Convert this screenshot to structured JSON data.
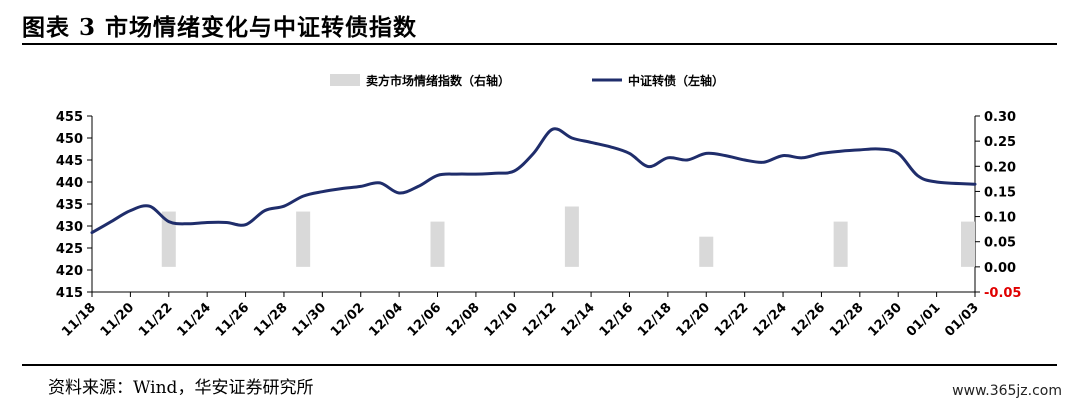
{
  "figure": {
    "title": "图表 3 市场情绪变化与中证转债指数",
    "source": "资料来源：Wind，华安证券研究所",
    "watermark": "www.365jz.com"
  },
  "chart_data": {
    "type": "bar+line",
    "title": "",
    "legend": [
      {
        "label": "卖方市场情绪指数（右轴）",
        "color": "#d9d9d9",
        "kind": "bar"
      },
      {
        "label": "中证转债（左轴）",
        "color": "#1f2d6b",
        "kind": "line"
      }
    ],
    "legend_position": "top",
    "x_ticks": [
      "11/18",
      "11/20",
      "11/22",
      "11/24",
      "11/26",
      "11/28",
      "11/30",
      "12/02",
      "12/04",
      "12/06",
      "12/08",
      "12/10",
      "12/12",
      "12/14",
      "12/16",
      "12/18",
      "12/20",
      "12/22",
      "12/24",
      "12/26",
      "12/28",
      "12/30",
      "01/01",
      "01/03"
    ],
    "y_left": {
      "min": 415,
      "max": 455,
      "step": 5,
      "ticks": [
        "455",
        "450",
        "445",
        "440",
        "435",
        "430",
        "425",
        "420",
        "415"
      ]
    },
    "y_right": {
      "min": -0.05,
      "max": 0.3,
      "step": 0.05,
      "ticks": [
        "0.30",
        "0.25",
        "0.20",
        "0.15",
        "0.10",
        "0.05",
        "0.00",
        "-0.05"
      ],
      "negative_color": "#e00000"
    },
    "series": [
      {
        "name": "中证转债（左轴）",
        "axis": "left",
        "color": "#1f2d6b",
        "points": [
          [
            "11/18",
            428.5
          ],
          [
            "11/19",
            431.0
          ],
          [
            "11/20",
            433.5
          ],
          [
            "11/21",
            434.5
          ],
          [
            "11/22",
            431.0
          ],
          [
            "11/23",
            430.5
          ],
          [
            "11/24",
            430.8
          ],
          [
            "11/25",
            430.8
          ],
          [
            "11/26",
            430.3
          ],
          [
            "11/27",
            433.5
          ],
          [
            "11/28",
            434.5
          ],
          [
            "11/29",
            436.8
          ],
          [
            "11/30",
            437.8
          ],
          [
            "12/01",
            438.5
          ],
          [
            "12/02",
            439.0
          ],
          [
            "12/03",
            439.8
          ],
          [
            "12/04",
            437.5
          ],
          [
            "12/05",
            439.0
          ],
          [
            "12/06",
            441.5
          ],
          [
            "12/07",
            441.8
          ],
          [
            "12/08",
            441.8
          ],
          [
            "12/09",
            442.0
          ],
          [
            "12/10",
            442.5
          ],
          [
            "12/11",
            446.5
          ],
          [
            "12/12",
            452.0
          ],
          [
            "12/13",
            450.0
          ],
          [
            "12/14",
            449.0
          ],
          [
            "12/15",
            448.0
          ],
          [
            "12/16",
            446.5
          ],
          [
            "12/17",
            443.5
          ],
          [
            "12/18",
            445.5
          ],
          [
            "12/19",
            445.0
          ],
          [
            "12/20",
            446.5
          ],
          [
            "12/21",
            446.0
          ],
          [
            "12/22",
            445.0
          ],
          [
            "12/23",
            444.5
          ],
          [
            "12/24",
            446.0
          ],
          [
            "12/25",
            445.5
          ],
          [
            "12/26",
            446.5
          ],
          [
            "12/27",
            447.0
          ],
          [
            "12/28",
            447.3
          ],
          [
            "12/29",
            447.5
          ],
          [
            "12/30",
            446.5
          ],
          [
            "12/31",
            441.5
          ],
          [
            "01/01",
            440.0
          ],
          [
            "01/03",
            439.5
          ]
        ]
      },
      {
        "name": "卖方市场情绪指数（右轴）",
        "axis": "right",
        "color": "#d9d9d9",
        "points": [
          [
            "11/22",
            0.11
          ],
          [
            "11/29",
            0.11
          ],
          [
            "12/06",
            0.09
          ],
          [
            "12/13",
            0.12
          ],
          [
            "12/20",
            0.06
          ],
          [
            "12/27",
            0.09
          ],
          [
            "01/03",
            0.09
          ]
        ]
      }
    ]
  }
}
